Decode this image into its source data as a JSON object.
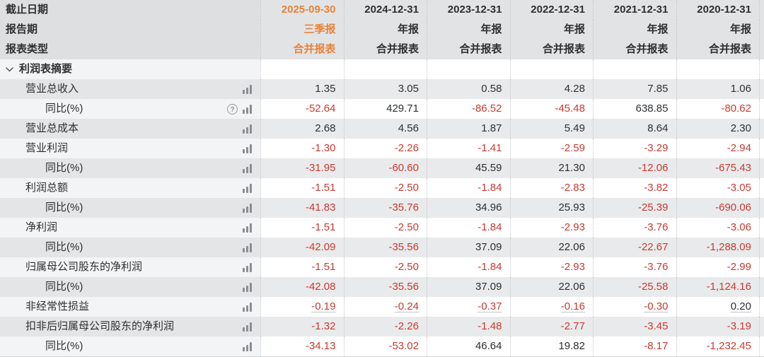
{
  "colors": {
    "accent_orange": "#e6833b",
    "negative_red": "#c93a31",
    "text_dark": "#2e2f31",
    "row_gray": "#e9eaeb",
    "row_white": "#ffffff",
    "header_gray": "#e2e3e5",
    "separator_dotted": "#c7c8ca"
  },
  "table": {
    "highlight_col": 0,
    "header_rows": [
      {
        "label": "截止日期",
        "values": [
          "2025-09-30",
          "2024-12-31",
          "2023-12-31",
          "2022-12-31",
          "2021-12-31",
          "2020-12-31"
        ]
      },
      {
        "label": "报告期",
        "values": [
          "三季报",
          "年报",
          "年报",
          "年报",
          "年报",
          "年报"
        ]
      },
      {
        "label": "报表类型",
        "values": [
          "合并报表",
          "合并报表",
          "合并报表",
          "合并报表",
          "合并报表",
          "合并报表"
        ]
      }
    ],
    "section": {
      "title": "利润表摘要",
      "chevron_icon": "chevron-down-icon",
      "expanded": true
    },
    "row_icons": {
      "bar_chart": "bar-chart-icon",
      "question": "question-circle-icon"
    },
    "rows": [
      {
        "label": "营业总收入",
        "indent": 1,
        "question_icon": false,
        "underline": false,
        "values": [
          "1.35",
          "3.05",
          "0.58",
          "4.28",
          "7.85",
          "1.06"
        ]
      },
      {
        "label": "同比(%)",
        "indent": 2,
        "question_icon": true,
        "underline": false,
        "values": [
          "-52.64",
          "429.71",
          "-86.52",
          "-45.48",
          "638.85",
          "-80.62"
        ]
      },
      {
        "label": "营业总成本",
        "indent": 1,
        "question_icon": false,
        "underline": false,
        "values": [
          "2.68",
          "4.56",
          "1.87",
          "5.49",
          "8.64",
          "2.30"
        ]
      },
      {
        "label": "营业利润",
        "indent": 1,
        "question_icon": false,
        "underline": false,
        "values": [
          "-1.30",
          "-2.26",
          "-1.41",
          "-2.59",
          "-3.29",
          "-2.94"
        ]
      },
      {
        "label": "同比(%)",
        "indent": 2,
        "question_icon": false,
        "underline": false,
        "values": [
          "-31.95",
          "-60.60",
          "45.59",
          "21.30",
          "-12.06",
          "-675.43"
        ]
      },
      {
        "label": "利润总额",
        "indent": 1,
        "question_icon": false,
        "underline": false,
        "values": [
          "-1.51",
          "-2.50",
          "-1.84",
          "-2.83",
          "-3.82",
          "-3.05"
        ]
      },
      {
        "label": "同比(%)",
        "indent": 2,
        "question_icon": false,
        "underline": false,
        "values": [
          "-41.83",
          "-35.76",
          "34.96",
          "25.93",
          "-25.39",
          "-690.06"
        ]
      },
      {
        "label": "净利润",
        "indent": 1,
        "question_icon": false,
        "underline": false,
        "values": [
          "-1.51",
          "-2.50",
          "-1.84",
          "-2.93",
          "-3.76",
          "-3.06"
        ]
      },
      {
        "label": "同比(%)",
        "indent": 2,
        "question_icon": false,
        "underline": false,
        "values": [
          "-42.09",
          "-35.56",
          "37.09",
          "22.06",
          "-22.67",
          "-1,288.09"
        ]
      },
      {
        "label": "归属母公司股东的净利润",
        "indent": 1,
        "question_icon": false,
        "underline": false,
        "values": [
          "-1.51",
          "-2.50",
          "-1.84",
          "-2.93",
          "-3.76",
          "-2.99"
        ]
      },
      {
        "label": "同比(%)",
        "indent": 2,
        "question_icon": false,
        "underline": false,
        "values": [
          "-42.08",
          "-35.56",
          "37.09",
          "22.06",
          "-25.58",
          "-1,124.16"
        ]
      },
      {
        "label": "非经常性损益",
        "indent": 1,
        "question_icon": false,
        "underline": true,
        "values": [
          "-0.19",
          "-0.24",
          "-0.37",
          "-0.16",
          "-0.30",
          "0.20"
        ]
      },
      {
        "label": "扣非后归属母公司股东的净利润",
        "indent": 1,
        "question_icon": false,
        "underline": false,
        "values": [
          "-1.32",
          "-2.26",
          "-1.48",
          "-2.77",
          "-3.45",
          "-3.19"
        ]
      },
      {
        "label": "同比(%)",
        "indent": 2,
        "question_icon": false,
        "underline": false,
        "values": [
          "-34.13",
          "-53.02",
          "46.64",
          "19.82",
          "-8.17",
          "-1,232.45"
        ]
      }
    ]
  }
}
